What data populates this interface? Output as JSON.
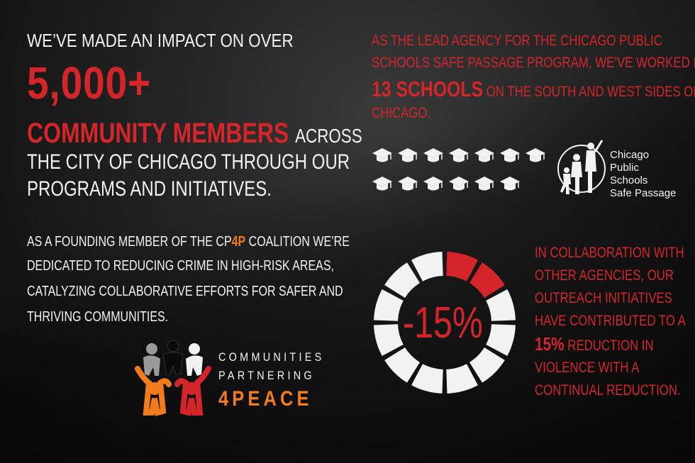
{
  "left": {
    "line1": "WE’VE MADE AN IMPACT ON OVER",
    "big_number": "5,000+",
    "community_members": "COMMUNITY MEMBERS",
    "across": "ACROSS",
    "line4": "THE CITY OF CHICAGO THROUGH OUR",
    "line5": "PROGRAMS AND INITIATIVES.",
    "para": {
      "l1_pre": "AS A FOUNDING MEMBER OF THE CP",
      "l1_hl": "4P",
      "l1_post": " COALITION WE’RE",
      "l2": "DEDICATED TO REDUCING CRIME IN HIGH-RISK AREAS,",
      "l3": "CATALYZING COLLABORATIVE EFFORTS FOR SAFER AND",
      "l4": "THRIVING COMMUNITIES."
    },
    "logo": {
      "line1": "COMMUNITIES",
      "line2": "PARTNERING",
      "line3": "4PEACE"
    }
  },
  "right_top": {
    "l1": "AS THE LEAD AGENCY FOR THE CHICAGO PUBLIC",
    "l2": "SCHOOLS SAFE PASSAGE PROGRAM, WE’VE WORKED IN",
    "l3_big": "13 SCHOOLS",
    "l3_rest": " ON THE SOUTH AND WEST SIDES OF",
    "l4": "CHICAGO.",
    "schools_count": 13,
    "cps_logo": {
      "line1": "Chicago",
      "line2": "Public",
      "line3": "Schools",
      "line4": "Safe Passage"
    }
  },
  "donut": {
    "label": "-15%",
    "total_segments": 12,
    "highlighted_segments": 2
  },
  "right_bottom": {
    "l1": "IN COLLABORATION WITH",
    "l2": "OTHER AGENCIES, OUR",
    "l3": "OUTREACH INITIATIVES",
    "l4": "HAVE CONTRIBUTED TO A",
    "l5_big": "15%",
    "l5_rest": " REDUCTION IN",
    "l6": "VIOLENCE WITH A",
    "l7": "CONTINUAL REDUCTION."
  },
  "colors": {
    "accent_red": "#d4262a",
    "accent_orange": "#f27c1c",
    "text_white": "#f2f2f2",
    "background": "#1a1a1a"
  }
}
